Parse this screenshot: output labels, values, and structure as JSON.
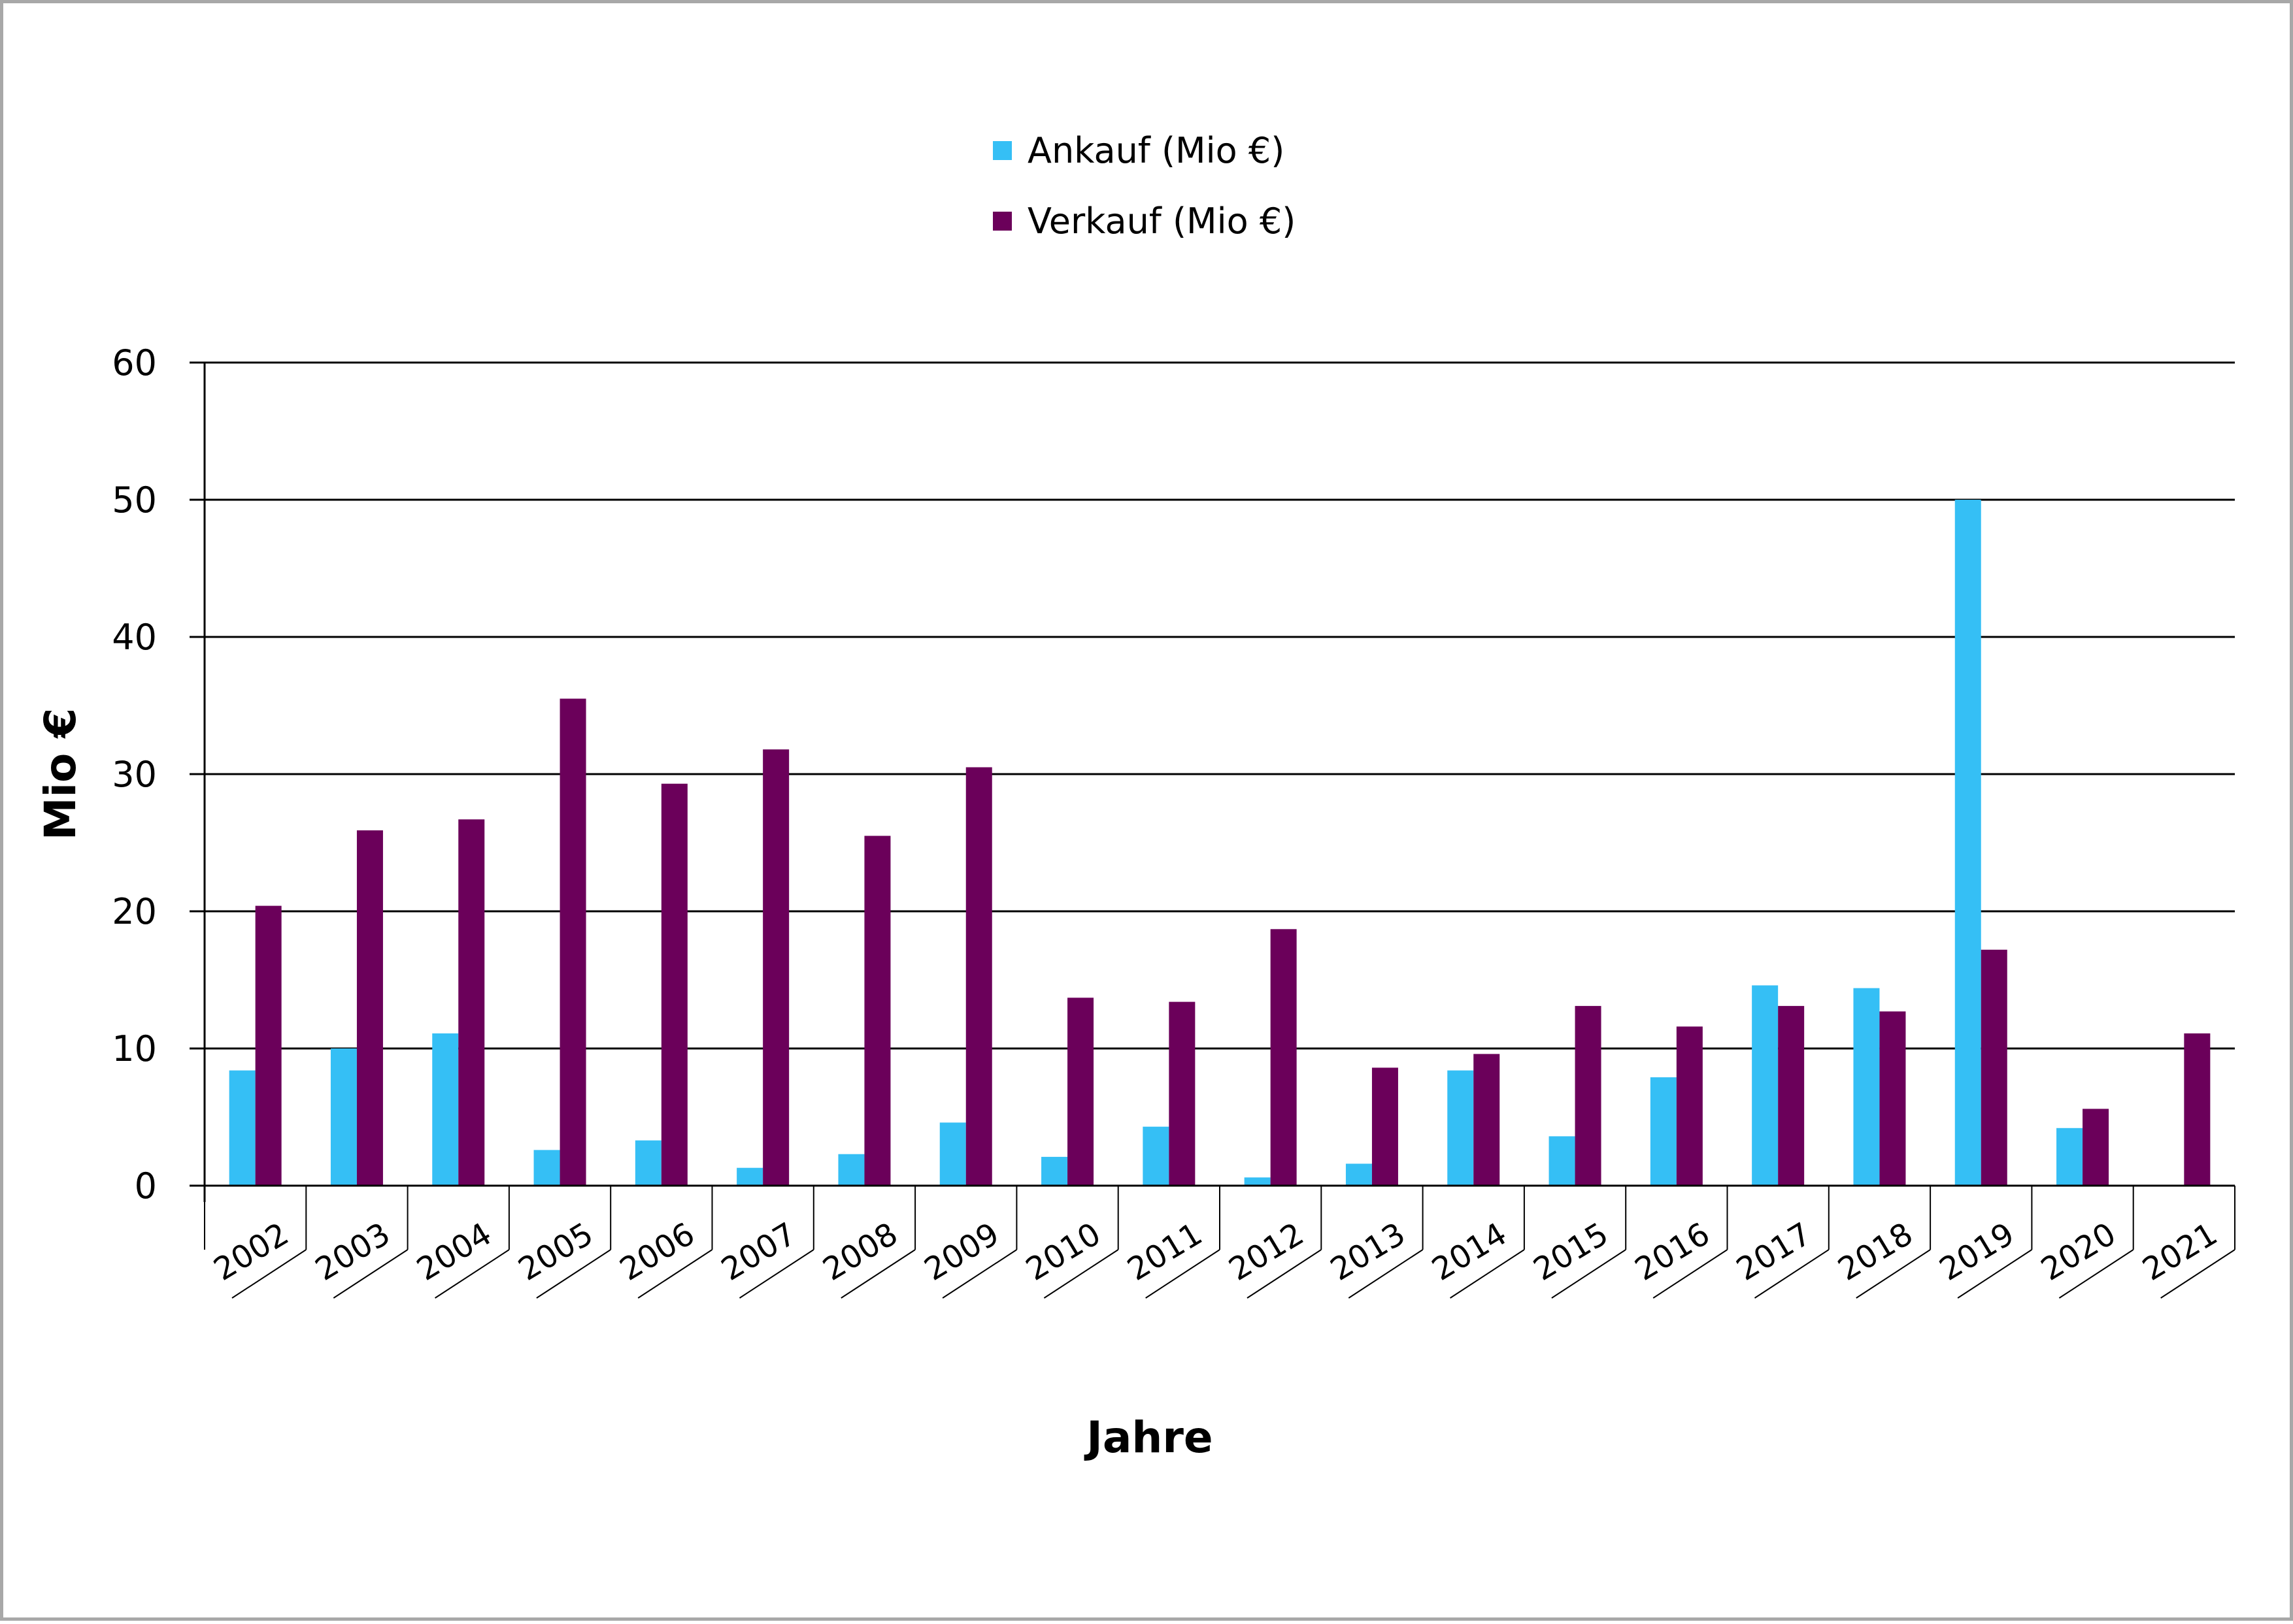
{
  "chart_data": {
    "type": "bar",
    "title": "",
    "xlabel": "Jahre",
    "ylabel": "Mio €",
    "ylim": [
      0,
      60
    ],
    "yticks": [
      0,
      10,
      20,
      30,
      40,
      50,
      60
    ],
    "grid": true,
    "legend_position": "top-center",
    "categories": [
      "2002",
      "2003",
      "2004",
      "2005",
      "2006",
      "2007",
      "2008",
      "2009",
      "2010",
      "2011",
      "2012",
      "2013",
      "2014",
      "2015",
      "2016",
      "2017",
      "2018",
      "2019",
      "2020",
      "2021"
    ],
    "series": [
      {
        "name": "Ankauf (Mio €)",
        "color": "#35bff5",
        "values": [
          8.4,
          10.0,
          11.1,
          2.6,
          3.3,
          1.3,
          2.3,
          4.6,
          2.1,
          4.3,
          0.6,
          1.6,
          8.4,
          3.6,
          7.9,
          14.6,
          14.4,
          50.0,
          4.2,
          0
        ]
      },
      {
        "name": "Verkauf (Mio €)",
        "color": "#6b005a",
        "values": [
          20.4,
          25.9,
          26.7,
          35.5,
          29.3,
          31.8,
          25.5,
          30.5,
          13.7,
          13.4,
          18.7,
          8.6,
          9.6,
          13.1,
          11.6,
          13.1,
          12.7,
          17.2,
          5.6,
          11.1
        ]
      }
    ]
  }
}
